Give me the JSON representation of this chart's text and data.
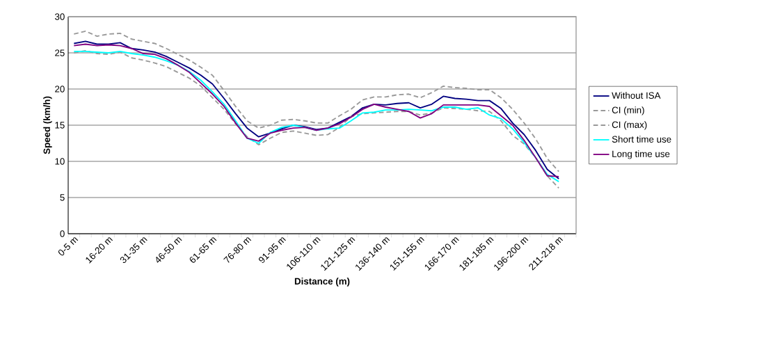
{
  "chart_data": {
    "type": "line",
    "xlabel": "Distance (m)",
    "ylabel": "Speed (km/h)",
    "categories": [
      "0-5 m",
      null,
      null,
      "16-20 m",
      null,
      null,
      "31-35 m",
      null,
      null,
      "46-50 m",
      null,
      null,
      "61-65 m",
      null,
      null,
      "76-80 m",
      null,
      null,
      "91-95 m",
      null,
      null,
      "106-110 m",
      null,
      null,
      "121-125 m",
      null,
      null,
      "136-140 m",
      null,
      null,
      "151-155 m",
      null,
      null,
      "166-170 m",
      null,
      null,
      "181-185 m",
      null,
      null,
      "196-200 m",
      null,
      null,
      "211-218 m",
      null
    ],
    "ylim": [
      0,
      30
    ],
    "yticks": [
      0,
      5,
      10,
      15,
      20,
      25,
      30
    ],
    "grid": "y",
    "legend": "right",
    "series": [
      {
        "name": "Without ISA",
        "color": "#000080",
        "line_style": "solid",
        "values": [
          26.3,
          26.6,
          26.2,
          26.2,
          26.4,
          25.6,
          25.4,
          25.1,
          24.5,
          23.7,
          22.9,
          21.9,
          20.7,
          18.7,
          16.6,
          14.6,
          13.4,
          13.9,
          14.5,
          15.0,
          14.8,
          14.4,
          14.6,
          15.4,
          16.2,
          17.4,
          17.9,
          17.8,
          18.0,
          18.1,
          17.4,
          17.9,
          19.0,
          18.7,
          18.6,
          18.4,
          18.4,
          17.3,
          15.3,
          13.7,
          11.5,
          8.9,
          7.6,
          null
        ]
      },
      {
        "name": "CI (min)",
        "color": "#999999",
        "line_style": "dashed",
        "values": [
          25.0,
          25.3,
          24.9,
          24.8,
          25.1,
          24.3,
          24.0,
          23.6,
          23.1,
          22.3,
          21.5,
          20.4,
          18.8,
          17.2,
          15.2,
          13.4,
          12.3,
          13.2,
          14.0,
          14.2,
          13.9,
          13.6,
          13.7,
          14.7,
          16.2,
          16.6,
          16.7,
          16.8,
          16.9,
          16.9,
          16.4,
          16.7,
          17.4,
          17.3,
          17.2,
          17.0,
          16.9,
          15.6,
          13.6,
          12.4,
          10.5,
          8.0,
          6.3,
          null
        ]
      },
      {
        "name": "CI (max)",
        "color": "#999999",
        "line_style": "dashed",
        "values": [
          27.6,
          28.0,
          27.3,
          27.6,
          27.7,
          26.9,
          26.6,
          26.3,
          25.6,
          24.8,
          24.0,
          23.0,
          21.9,
          19.8,
          17.6,
          15.6,
          14.6,
          15.0,
          15.7,
          15.8,
          15.6,
          15.3,
          15.3,
          16.3,
          17.2,
          18.5,
          18.9,
          18.9,
          19.2,
          19.3,
          18.8,
          19.5,
          20.4,
          20.2,
          20.1,
          19.9,
          19.9,
          18.8,
          17.2,
          15.3,
          13.1,
          10.4,
          8.6,
          null
        ]
      },
      {
        "name": "Short time use",
        "color": "#00ffff",
        "line_style": "solid",
        "values": [
          25.2,
          25.2,
          25.1,
          25.0,
          25.2,
          24.9,
          24.7,
          24.4,
          23.9,
          23.3,
          22.4,
          21.2,
          19.6,
          17.9,
          15.6,
          13.2,
          12.5,
          14.0,
          14.7,
          15.0,
          14.7,
          14.3,
          14.5,
          14.6,
          15.6,
          16.7,
          16.8,
          17.1,
          17.1,
          17.2,
          17.1,
          17.0,
          17.5,
          17.5,
          17.2,
          17.4,
          16.4,
          15.9,
          14.5,
          12.6,
          10.5,
          8.2,
          7.2,
          null
        ]
      },
      {
        "name": "Long time use",
        "color": "#800080",
        "line_style": "solid",
        "values": [
          26.0,
          26.2,
          26.0,
          26.1,
          26.0,
          25.6,
          24.9,
          24.8,
          24.2,
          23.3,
          22.3,
          20.8,
          19.3,
          17.6,
          15.3,
          13.2,
          12.8,
          13.9,
          14.3,
          14.6,
          14.7,
          14.3,
          14.6,
          15.2,
          16.1,
          17.2,
          17.9,
          17.5,
          17.2,
          16.9,
          16.0,
          16.6,
          17.8,
          17.8,
          17.8,
          17.8,
          17.6,
          16.3,
          15.0,
          12.9,
          10.5,
          8.0,
          7.9,
          null
        ]
      }
    ]
  }
}
